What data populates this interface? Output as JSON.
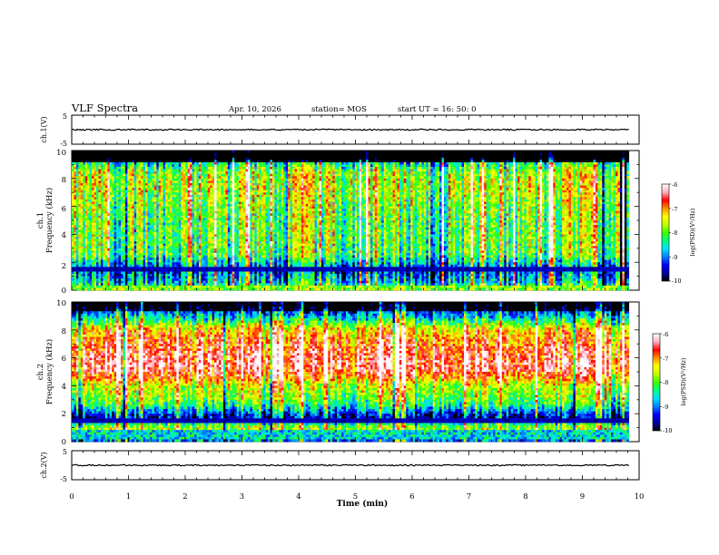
{
  "header": {
    "title": "VLF Spectra",
    "date": "Apr. 10, 2026",
    "station": "station= MOS",
    "start": "start  UT =   16: 50: 0"
  },
  "colors": {
    "scale": [
      "#000000",
      "#0000a0",
      "#0000ff",
      "#0080ff",
      "#00e0ff",
      "#00ff80",
      "#40ff00",
      "#c0ff00",
      "#ffff00",
      "#ff9000",
      "#ff0000",
      "#ffb0c0",
      "#ffffff"
    ]
  },
  "chart_data": [
    {
      "id": "ch1-waveform",
      "type": "line",
      "ylabel": "ch.1(V)",
      "ylim": [
        -5,
        5
      ],
      "yticks": [
        "5",
        "-5"
      ],
      "level": 0
    },
    {
      "id": "ch1-spectrogram",
      "type": "heatmap",
      "ylabel_line1": "ch.1",
      "ylabel_line2": "Frequency (kHz)",
      "xlim": [
        0,
        10
      ],
      "ylim": [
        0,
        10
      ],
      "yticks": [
        "0",
        "2",
        "4",
        "6",
        "8",
        "10"
      ],
      "data_xmax": 9.82,
      "colorbar": {
        "label": "log(PSD)(V²/Hz)",
        "range": [
          -10,
          -6
        ],
        "ticks": [
          "-6",
          "-7",
          "-8",
          "-9",
          "-10"
        ]
      },
      "profile": [
        [
          0.0,
          0.0
        ],
        [
          0.3,
          0.42
        ],
        [
          0.7,
          0.3
        ],
        [
          1.5,
          0.18
        ],
        [
          2.5,
          0.48
        ],
        [
          3.5,
          0.5
        ],
        [
          5.0,
          0.5
        ],
        [
          6.5,
          0.55
        ],
        [
          7.5,
          0.6
        ],
        [
          8.5,
          0.55
        ],
        [
          9.2,
          0.35
        ],
        [
          9.6,
          0.0
        ],
        [
          10.0,
          0.0
        ]
      ]
    },
    {
      "id": "ch2-spectrogram",
      "type": "heatmap",
      "ylabel_line1": "ch.2",
      "ylabel_line2": "Frequency (kHz)",
      "xlim": [
        0,
        10
      ],
      "ylim": [
        0,
        10
      ],
      "yticks": [
        "0",
        "2",
        "4",
        "6",
        "8",
        "10"
      ],
      "data_xmax": 9.82,
      "colorbar": {
        "label": "log(PSD)(V²/Hz)",
        "range": [
          -10,
          -6
        ],
        "ticks": [
          "-6",
          "-7",
          "-8",
          "-9",
          "-10"
        ]
      },
      "profile": [
        [
          0.0,
          0.15
        ],
        [
          0.4,
          0.6
        ],
        [
          1.0,
          0.55
        ],
        [
          1.5,
          0.3
        ],
        [
          1.8,
          0.1
        ],
        [
          2.5,
          0.4
        ],
        [
          3.2,
          0.55
        ],
        [
          4.0,
          0.6
        ],
        [
          4.5,
          0.75
        ],
        [
          5.0,
          0.85
        ],
        [
          5.5,
          0.9
        ],
        [
          6.5,
          0.85
        ],
        [
          7.0,
          0.8
        ],
        [
          8.0,
          0.7
        ],
        [
          8.5,
          0.5
        ],
        [
          9.0,
          0.3
        ],
        [
          9.5,
          0.15
        ],
        [
          10.0,
          0.05
        ]
      ]
    },
    {
      "id": "ch2-waveform",
      "type": "line",
      "ylabel": "ch.2(V)",
      "ylim": [
        -5,
        5
      ],
      "yticks": [
        "5",
        "-5"
      ],
      "level": 0
    }
  ],
  "x_axis": {
    "label": "Time  (min)",
    "range": [
      0,
      10
    ],
    "ticks": [
      "0",
      "1",
      "2",
      "3",
      "4",
      "5",
      "6",
      "7",
      "8",
      "9",
      "10"
    ]
  }
}
